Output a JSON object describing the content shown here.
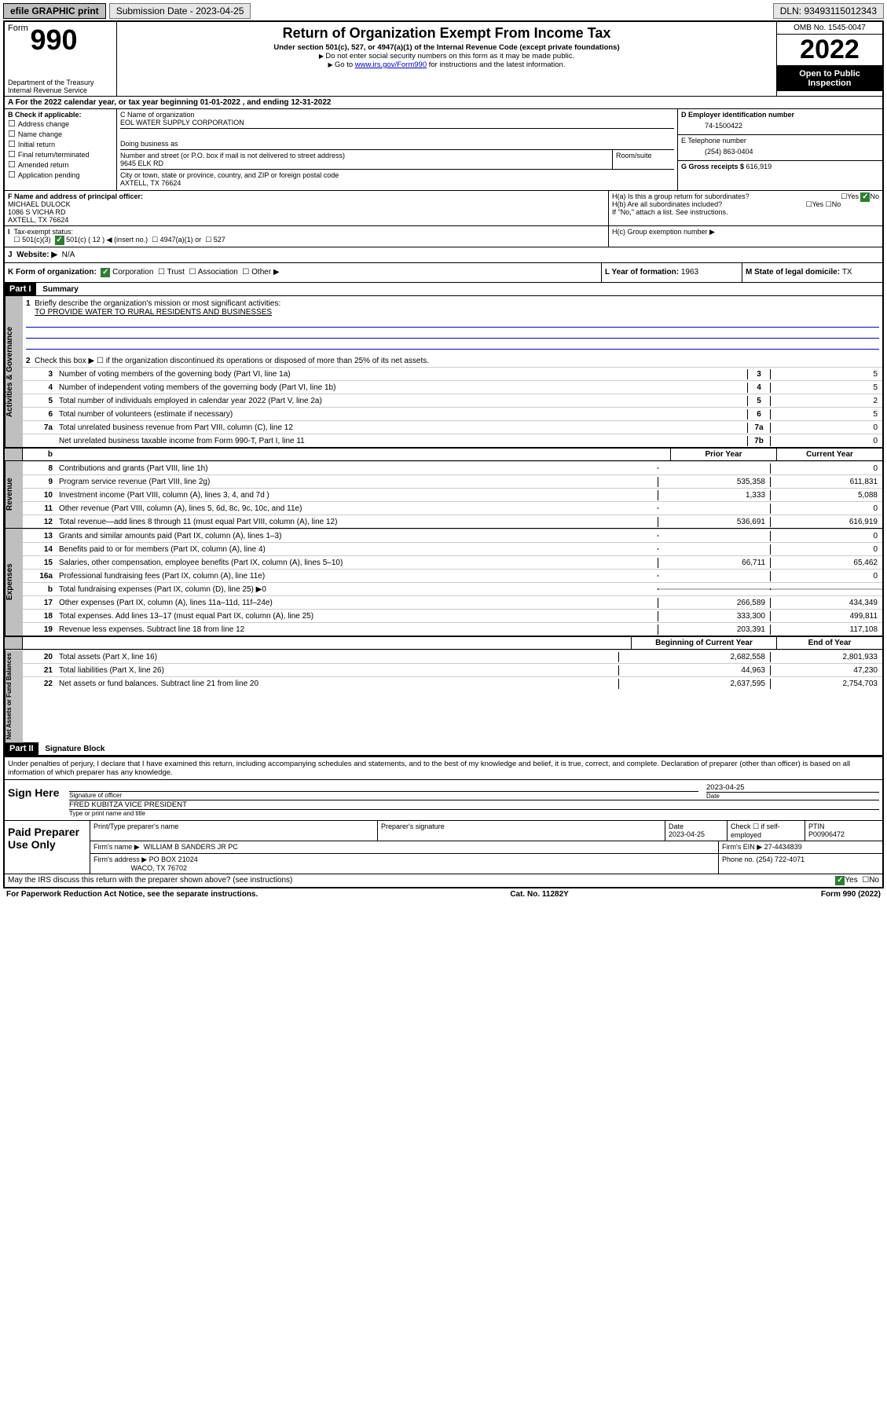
{
  "topbar": {
    "efile": "efile GRAPHIC print",
    "sub_label": "Submission Date - ",
    "sub_date": "2023-04-25",
    "dln_label": "DLN: ",
    "dln": "93493115012343"
  },
  "header": {
    "form_word": "Form",
    "form_number": "990",
    "dept": "Department of the Treasury Internal Revenue Service",
    "title": "Return of Organization Exempt From Income Tax",
    "sub1": "Under section 501(c), 527, or 4947(a)(1) of the Internal Revenue Code (except private foundations)",
    "sub2": "Do not enter social security numbers on this form as it may be made public.",
    "sub3_pre": "Go to ",
    "sub3_link": "www.irs.gov/Form990",
    "sub3_post": " for instructions and the latest information.",
    "omb": "OMB No. 1545-0047",
    "year": "2022",
    "inspection": "Open to Public Inspection"
  },
  "section_a": {
    "text": "A For the 2022 calendar year, or tax year beginning 01-01-2022   , and ending 12-31-2022"
  },
  "box_b": {
    "title": "B Check if applicable:",
    "items": [
      "Address change",
      "Name change",
      "Initial return",
      "Final return/terminated",
      "Amended return",
      "Application pending"
    ]
  },
  "box_c": {
    "label_name": "C Name of organization",
    "name": "EOL WATER SUPPLY CORPORATION",
    "dba_label": "Doing business as",
    "addr_label": "Number and street (or P.O. box if mail is not delivered to street address)",
    "room_label": "Room/suite",
    "addr": "9645 ELK RD",
    "city_label": "City or town, state or province, country, and ZIP or foreign postal code",
    "city": "AXTELL, TX  76624"
  },
  "box_d": {
    "label": "D Employer identification number",
    "value": "74-1500422"
  },
  "box_e": {
    "label": "E Telephone number",
    "value": "(254) 863-0404"
  },
  "box_g": {
    "label": "G Gross receipts $ ",
    "value": "616,919"
  },
  "box_f": {
    "label": "F Name and address of principal officer:",
    "name": "MICHAEL DULOCK",
    "addr1": "1086 S VICHA RD",
    "addr2": "AXTELL, TX  76624"
  },
  "box_h": {
    "a": "H(a)  Is this a group return for subordinates?",
    "b": "H(b)  Are all subordinates included?",
    "b_note": "If \"No,\" attach a list. See instructions.",
    "c": "H(c)  Group exemption number ▶"
  },
  "box_i": {
    "label": "Tax-exempt status:",
    "opts": [
      "501(c)(3)",
      "501(c) ( 12 ) ◀ (insert no.)",
      "4947(a)(1) or",
      "527"
    ]
  },
  "box_j": {
    "label": "Website: ▶",
    "value": "N/A"
  },
  "box_k": {
    "label": "K Form of organization:",
    "opts": [
      "Corporation",
      "Trust",
      "Association",
      "Other ▶"
    ]
  },
  "box_l": {
    "label": "L Year of formation: ",
    "value": "1963"
  },
  "box_m": {
    "label": "M State of legal domicile: ",
    "value": "TX"
  },
  "part1": {
    "label": "Part I",
    "title": "Summary",
    "q1a": "Briefly describe the organization's mission or most significant activities:",
    "q1b": "TO PROVIDE WATER TO RURAL RESIDENTS AND BUSINESSES",
    "q2": "Check this box ▶ ☐  if the organization discontinued its operations or disposed of more than 25% of its net assets.",
    "lines_gov": [
      {
        "n": "3",
        "t": "Number of voting members of the governing body (Part VI, line 1a)",
        "box": "3",
        "v": "5"
      },
      {
        "n": "4",
        "t": "Number of independent voting members of the governing body (Part VI, line 1b)",
        "box": "4",
        "v": "5"
      },
      {
        "n": "5",
        "t": "Total number of individuals employed in calendar year 2022 (Part V, line 2a)",
        "box": "5",
        "v": "2"
      },
      {
        "n": "6",
        "t": "Total number of volunteers (estimate if necessary)",
        "box": "6",
        "v": "5"
      },
      {
        "n": "7a",
        "t": "Total unrelated business revenue from Part VIII, column (C), line 12",
        "box": "7a",
        "v": "0"
      },
      {
        "n": "",
        "t": "Net unrelated business taxable income from Form 990-T, Part I, line 11",
        "box": "7b",
        "v": "0"
      }
    ],
    "col_heads": {
      "b": "b",
      "prior": "Prior Year",
      "current": "Current Year"
    },
    "revenue": [
      {
        "n": "8",
        "t": "Contributions and grants (Part VIII, line 1h)",
        "p": "",
        "c": "0"
      },
      {
        "n": "9",
        "t": "Program service revenue (Part VIII, line 2g)",
        "p": "535,358",
        "c": "611,831"
      },
      {
        "n": "10",
        "t": "Investment income (Part VIII, column (A), lines 3, 4, and 7d )",
        "p": "1,333",
        "c": "5,088"
      },
      {
        "n": "11",
        "t": "Other revenue (Part VIII, column (A), lines 5, 6d, 8c, 9c, 10c, and 11e)",
        "p": "",
        "c": "0"
      },
      {
        "n": "12",
        "t": "Total revenue—add lines 8 through 11 (must equal Part VIII, column (A), line 12)",
        "p": "536,691",
        "c": "616,919"
      }
    ],
    "expenses": [
      {
        "n": "13",
        "t": "Grants and similar amounts paid (Part IX, column (A), lines 1–3)",
        "p": "",
        "c": "0"
      },
      {
        "n": "14",
        "t": "Benefits paid to or for members (Part IX, column (A), line 4)",
        "p": "",
        "c": "0"
      },
      {
        "n": "15",
        "t": "Salaries, other compensation, employee benefits (Part IX, column (A), lines 5–10)",
        "p": "66,711",
        "c": "65,462"
      },
      {
        "n": "16a",
        "t": "Professional fundraising fees (Part IX, column (A), line 11e)",
        "p": "",
        "c": "0"
      },
      {
        "n": "b",
        "t": "Total fundraising expenses (Part IX, column (D), line 25) ▶0",
        "p": "GRAY",
        "c": "GRAY"
      },
      {
        "n": "17",
        "t": "Other expenses (Part IX, column (A), lines 11a–11d, 11f–24e)",
        "p": "266,589",
        "c": "434,349"
      },
      {
        "n": "18",
        "t": "Total expenses. Add lines 13–17 (must equal Part IX, column (A), line 25)",
        "p": "333,300",
        "c": "499,811"
      },
      {
        "n": "19",
        "t": "Revenue less expenses. Subtract line 18 from line 12",
        "p": "203,391",
        "c": "117,108"
      }
    ],
    "net_heads": {
      "begin": "Beginning of Current Year",
      "end": "End of Year"
    },
    "net": [
      {
        "n": "20",
        "t": "Total assets (Part X, line 16)",
        "p": "2,682,558",
        "c": "2,801,933"
      },
      {
        "n": "21",
        "t": "Total liabilities (Part X, line 26)",
        "p": "44,963",
        "c": "47,230"
      },
      {
        "n": "22",
        "t": "Net assets or fund balances. Subtract line 21 from line 20",
        "p": "2,637,595",
        "c": "2,754,703"
      }
    ],
    "side_labels": {
      "gov": "Activities & Governance",
      "rev": "Revenue",
      "exp": "Expenses",
      "net": "Net Assets or Fund Balances"
    }
  },
  "part2": {
    "label": "Part II",
    "title": "Signature Block",
    "declare": "Under penalties of perjury, I declare that I have examined this return, including accompanying schedules and statements, and to the best of my knowledge and belief, it is true, correct, and complete. Declaration of preparer (other than officer) is based on all information of which preparer has any knowledge.",
    "sign_here": "Sign Here",
    "sig_officer": "Signature of officer",
    "sig_date_label": "Date",
    "sig_date": "2023-04-25",
    "officer_name": "FRED KUBITZA  VICE PRESIDENT",
    "officer_sub": "Type or print name and title",
    "paid": "Paid Preparer Use Only",
    "prep_name_label": "Print/Type preparer's name",
    "prep_sig_label": "Preparer's signature",
    "prep_date_label": "Date",
    "prep_date": "2023-04-25",
    "prep_check": "Check ☐ if self-employed",
    "ptin_label": "PTIN",
    "ptin": "P00906472",
    "firm_name_label": "Firm's name    ▶",
    "firm_name": "WILLIAM B SANDERS JR PC",
    "firm_ein_label": "Firm's EIN ▶",
    "firm_ein": "27-4434839",
    "firm_addr_label": "Firm's address ▶",
    "firm_addr1": "PO BOX 21024",
    "firm_addr2": "WACO, TX  76702",
    "firm_phone_label": "Phone no. ",
    "firm_phone": "(254) 722-4071",
    "may_irs": "May the IRS discuss this return with the preparer shown above? (see instructions)",
    "paperwork": "For Paperwork Reduction Act Notice, see the separate instructions.",
    "cat": "Cat. No. 11282Y",
    "formver": "Form 990 (2022)"
  }
}
